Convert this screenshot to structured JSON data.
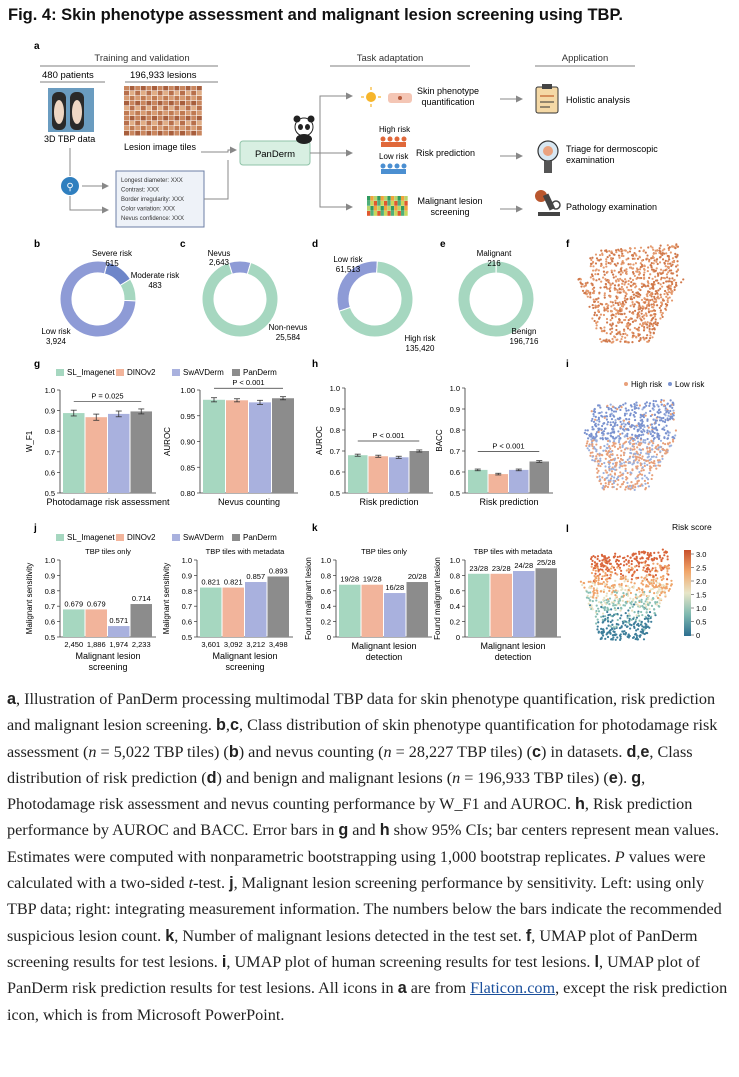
{
  "title": "Fig. 4: Skin phenotype assessment and malignant lesion screening using TBP.",
  "panel_a": {
    "letter": "a",
    "hdr_train": "Training and validation",
    "hdr_task": "Task adaptation",
    "hdr_app": "Application",
    "patients": "480 patients",
    "lesions": "196,933 lesions",
    "tbp_data": "3D TBP data",
    "tiles": "Lesion image tiles",
    "panderm": "PanDerm",
    "meta": [
      "Longest diameter: XXX",
      "Contrast: XXX",
      "Border irregularity: XXX",
      "Color variation: XXX",
      "Nevus confidence: XXX"
    ],
    "task1": [
      "Skin phenotype",
      "quantification"
    ],
    "task2": "Risk prediction",
    "high_risk": "High risk",
    "low_risk": "Low risk",
    "task3": [
      "Malignant lesion",
      "screening"
    ],
    "app1": "Holistic analysis",
    "app2": [
      "Triage for dermoscopic",
      "examination"
    ],
    "app3": "Pathology examination"
  },
  "letters": {
    "b": "b",
    "c": "c",
    "d": "d",
    "e": "e",
    "f": "f",
    "g": "g",
    "h": "h",
    "i": "i",
    "j": "j",
    "k": "k",
    "l": "l"
  },
  "chart_data": [
    {
      "id": "b",
      "type": "pie",
      "labels": [
        "Severe risk",
        "Moderate risk",
        "Low risk"
      ],
      "values": [
        615,
        483,
        3924
      ],
      "value_labels": [
        "615",
        "483",
        "3,924"
      ],
      "colors": [
        "#6e86c9",
        "#a6d7c0",
        "#8e9bd6"
      ]
    },
    {
      "id": "c",
      "type": "pie",
      "labels": [
        "Nevus",
        "Non-nevus"
      ],
      "values": [
        2643,
        25584
      ],
      "value_labels": [
        "2,643",
        "25,584"
      ],
      "colors": [
        "#8e9bd6",
        "#a6d7c0"
      ]
    },
    {
      "id": "d",
      "type": "pie",
      "labels": [
        "Low risk",
        "High risk"
      ],
      "values": [
        61513,
        135420
      ],
      "value_labels": [
        "61,513",
        "135,420"
      ],
      "colors": [
        "#8e9bd6",
        "#a6d7c0"
      ]
    },
    {
      "id": "e",
      "type": "pie",
      "labels": [
        "Malignant",
        "Benign"
      ],
      "values": [
        216,
        196716
      ],
      "value_labels": [
        "216",
        "196,716"
      ],
      "colors": [
        "#8e9bd6",
        "#a6d7c0"
      ]
    },
    {
      "id": "g1",
      "type": "bar",
      "ylabel": "W_F1",
      "xlabel": "Photodamage risk assessment",
      "ylim": [
        0.5,
        1.0
      ],
      "yticks": [
        "0.5",
        "0.6",
        "0.7",
        "0.8",
        "0.9",
        "1.0"
      ],
      "values": [
        0.888,
        0.868,
        0.884,
        0.896
      ],
      "errors": [
        0.014,
        0.015,
        0.014,
        0.012
      ],
      "pvalue": "P = 0.025"
    },
    {
      "id": "g2",
      "type": "bar",
      "ylabel": "AUROC",
      "xlabel": "Nevus counting",
      "ylim": [
        0.8,
        1.0
      ],
      "yticks": [
        "0.80",
        "0.85",
        "0.90",
        "0.95",
        "1.00"
      ],
      "values": [
        0.981,
        0.98,
        0.976,
        0.984
      ],
      "errors": [
        0.004,
        0.003,
        0.004,
        0.003
      ],
      "pvalue": "P < 0.001"
    },
    {
      "id": "h1",
      "type": "bar",
      "ylabel": "AUROC",
      "xlabel": "Risk prediction",
      "ylim": [
        0.5,
        1.0
      ],
      "yticks": [
        "0.5",
        "0.6",
        "0.7",
        "0.8",
        "0.9",
        "1.0"
      ],
      "values": [
        0.68,
        0.675,
        0.67,
        0.7
      ],
      "errors": [
        0.005,
        0.005,
        0.005,
        0.005
      ],
      "pvalue": "P < 0.001"
    },
    {
      "id": "h2",
      "type": "bar",
      "ylabel": "BACC",
      "xlabel": "Risk prediction",
      "ylim": [
        0.5,
        1.0
      ],
      "yticks": [
        "0.5",
        "0.6",
        "0.7",
        "0.8",
        "0.9",
        "1.0"
      ],
      "values": [
        0.61,
        0.59,
        0.61,
        0.65
      ],
      "errors": [
        0.004,
        0.004,
        0.004,
        0.004
      ],
      "pvalue": "P < 0.001"
    },
    {
      "id": "j1",
      "type": "bar",
      "title": "TBP tiles only",
      "ylabel": "Malignant sensitivity",
      "xlabel": [
        "Malignant lesion",
        "screening"
      ],
      "ylim": [
        0.5,
        1.0
      ],
      "yticks": [
        "0.5",
        "0.6",
        "0.7",
        "0.8",
        "0.9",
        "1.0"
      ],
      "values": [
        0.679,
        0.679,
        0.571,
        0.714
      ],
      "value_labels": [
        "0.679",
        "0.679",
        "0.571",
        "0.714"
      ],
      "counts": [
        "2,450",
        "1,886",
        "1,974",
        "2,233"
      ]
    },
    {
      "id": "j2",
      "type": "bar",
      "title": "TBP tiles with metadata",
      "ylabel": "Malignant sensitivity",
      "xlabel": [
        "Malignant lesion",
        "screening"
      ],
      "ylim": [
        0.5,
        1.0
      ],
      "yticks": [
        "0.5",
        "0.6",
        "0.7",
        "0.8",
        "0.9",
        "1.0"
      ],
      "values": [
        0.821,
        0.821,
        0.857,
        0.893
      ],
      "value_labels": [
        "0.821",
        "0.821",
        "0.857",
        "0.893"
      ],
      "counts": [
        "3,601",
        "3,092",
        "3,212",
        "3,498"
      ]
    },
    {
      "id": "k1",
      "type": "bar",
      "title": "TBP tiles only",
      "ylabel": "Found malignant lesion",
      "xlabel": [
        "Malignant lesion",
        "detection"
      ],
      "ylim": [
        0,
        1.0
      ],
      "yticks": [
        "0",
        "0.2",
        "0.4",
        "0.6",
        "0.8",
        "1.0"
      ],
      "values": [
        0.679,
        0.679,
        0.571,
        0.714
      ],
      "value_labels": [
        "19/28",
        "19/28",
        "16/28",
        "20/28"
      ]
    },
    {
      "id": "k2",
      "type": "bar",
      "title": "TBP tiles with metadata",
      "ylabel": "Found malignant lesion",
      "xlabel": [
        "Malignant lesion",
        "detection"
      ],
      "ylim": [
        0,
        1.0
      ],
      "yticks": [
        "0",
        "0.2",
        "0.4",
        "0.6",
        "0.8",
        "1.0"
      ],
      "values": [
        0.821,
        0.821,
        0.857,
        0.893
      ],
      "value_labels": [
        "23/28",
        "23/28",
        "24/28",
        "25/28"
      ]
    }
  ],
  "legend": {
    "models": [
      "SL_Imagenet",
      "DINOv2",
      "SwAVDerm",
      "PanDerm"
    ],
    "colors": [
      "#a6d7c0",
      "#f2b49b",
      "#a9b1de",
      "#8c8c8c"
    ]
  },
  "panel_i_legend": [
    "High risk",
    "Low risk"
  ],
  "panel_l": {
    "title": "Risk score",
    "ticks": [
      "3.0",
      "2.5",
      "2.0",
      "1.5",
      "1.0",
      "0.5",
      "0"
    ]
  },
  "caption": {
    "s1": "a",
    "t1": ", Illustration of PanDerm processing multimodal TBP data for skin phenotype quantification, risk prediction and malignant lesion screening. ",
    "s2": "b",
    "s3": "c",
    "t2": ", Class distribution of skin phenotype quantification for photodamage risk assessment (",
    "n1": "n",
    "t3": " = 5,022 TBP tiles) (",
    "t4": ") and nevus counting (",
    "t5": " = 28,227 TBP tiles) (",
    "t6": ") in datasets. ",
    "s4": "d",
    "s5": "e",
    "t7": ", Class distribution of risk prediction (",
    "t8": ") and benign and malignant lesions (",
    "t9": " = 196,933 TBP tiles) (",
    "t10": "). ",
    "s6": "g",
    "t11": ", Photodamage risk assessment and nevus counting performance by W_F1 and AUROC. ",
    "s7": "h",
    "t12": ", Risk prediction performance by AUROC and BACC. Error bars in ",
    "t13": " and ",
    "t14": " show 95% CIs; bar centers represent mean values. Estimates were computed with nonparametric bootstrapping using 1,000 bootstrap replicates. ",
    "p": "P",
    "t15": " values were calculated with a two-sided ",
    "tt": "t",
    "t16": "-test. ",
    "s8": "j",
    "t17": ", Malignant lesion screening performance by sensitivity. Left: using only TBP data; right: integrating measurement information. The numbers below the bars indicate the recommended suspicious lesion count. ",
    "s9": "k",
    "t18": ", Number of malignant lesions detected in the test set. ",
    "s10": "f",
    "t19": ", UMAP plot of PanDerm screening results for test lesions. ",
    "s11": "i",
    "t20": ", UMAP plot of human screening results for test lesions. ",
    "s12": "l",
    "t21": ", UMAP plot of PanDerm risk prediction results for test lesions. All icons in ",
    "t22": " are from ",
    "link": "Flaticon.com",
    "t23": ", except the risk prediction icon, which is from Microsoft PowerPoint."
  }
}
